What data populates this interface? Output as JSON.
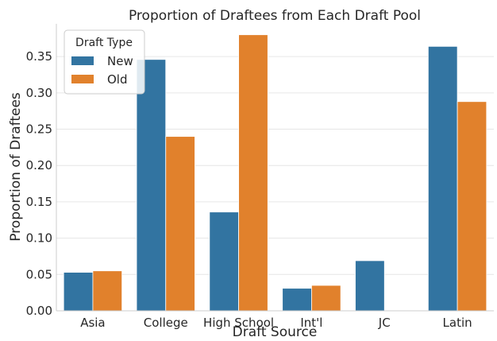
{
  "chart_data": {
    "type": "bar",
    "title": "Proportion of Draftees from Each Draft Pool",
    "xlabel": "Draft Source",
    "ylabel": "Proportion of Draftees",
    "categories": [
      "Asia",
      "College",
      "High School",
      "Int'l",
      "JC",
      "Latin"
    ],
    "series": [
      {
        "name": "New",
        "color": "#3274a1",
        "values": [
          0.053,
          0.346,
          0.136,
          0.031,
          0.069,
          0.364
        ]
      },
      {
        "name": "Old",
        "color": "#e1812c",
        "values": [
          0.055,
          0.24,
          0.38,
          0.035,
          0.0,
          0.288
        ]
      }
    ],
    "ylim": [
      0,
      0.395
    ],
    "yticks": [
      "0.00",
      "0.05",
      "0.10",
      "0.15",
      "0.20",
      "0.25",
      "0.30",
      "0.35"
    ],
    "legend": {
      "title": "Draft Type",
      "position": "top-left"
    },
    "grid": true
  }
}
